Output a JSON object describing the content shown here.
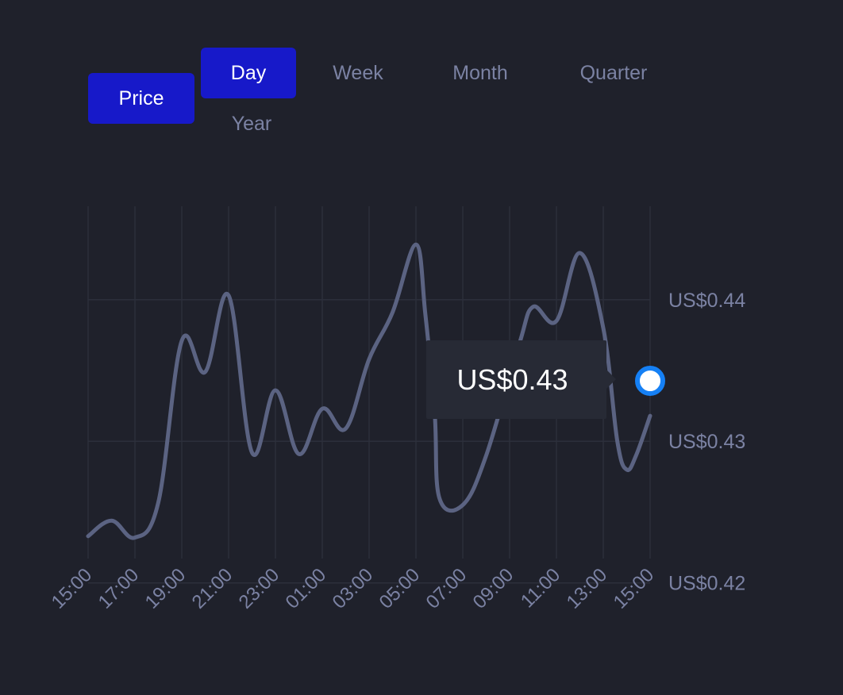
{
  "controls": {
    "metric_label": "Price",
    "tabs": [
      {
        "label": "Day",
        "active": true
      },
      {
        "label": "Week",
        "active": false
      },
      {
        "label": "Month",
        "active": false
      },
      {
        "label": "Quarter",
        "active": false
      },
      {
        "label": "Year",
        "active": false
      }
    ]
  },
  "colors": {
    "accent": "#1719c9",
    "series": "#5b6382",
    "marker": "#1580f5",
    "background": "#1f212b"
  },
  "tooltip": {
    "value": "US$0.43"
  },
  "chart_data": {
    "type": "line",
    "title": "",
    "xlabel": "",
    "ylabel": "",
    "grid": true,
    "y_tick_labels": [
      "US$0.44",
      "US$0.43",
      "US$0.42"
    ],
    "y_tick_values": [
      0.44,
      0.43,
      0.42
    ],
    "ylim": [
      0.4155,
      0.4466
    ],
    "x_tick_labels": [
      "15:00",
      "17:00",
      "19:00",
      "21:00",
      "23:00",
      "01:00",
      "03:00",
      "05:00",
      "07:00",
      "09:00",
      "11:00",
      "13:00",
      "15:00"
    ],
    "x_hours": [
      0,
      2,
      4,
      6,
      8,
      10,
      12,
      14,
      16,
      18,
      20,
      22,
      24
    ],
    "series": [
      {
        "x": [
          0,
          1,
          2,
          3,
          4,
          5,
          6,
          7,
          8,
          9,
          10,
          11,
          12,
          13,
          14,
          14.4,
          14.8,
          15,
          16,
          17,
          18.4,
          19,
          20,
          21,
          22,
          22.6,
          23,
          23.4,
          24
        ],
        "values": [
          0.4233,
          0.4244,
          0.4232,
          0.4257,
          0.4371,
          0.4349,
          0.4403,
          0.4292,
          0.4336,
          0.4291,
          0.4323,
          0.4309,
          0.4358,
          0.4391,
          0.4439,
          0.439,
          0.432,
          0.426,
          0.4255,
          0.429,
          0.4368,
          0.4395,
          0.4385,
          0.4433,
          0.438,
          0.43,
          0.428,
          0.429,
          0.4318
        ]
      }
    ],
    "highlight": {
      "x": 24,
      "value": 0.4318
    }
  }
}
